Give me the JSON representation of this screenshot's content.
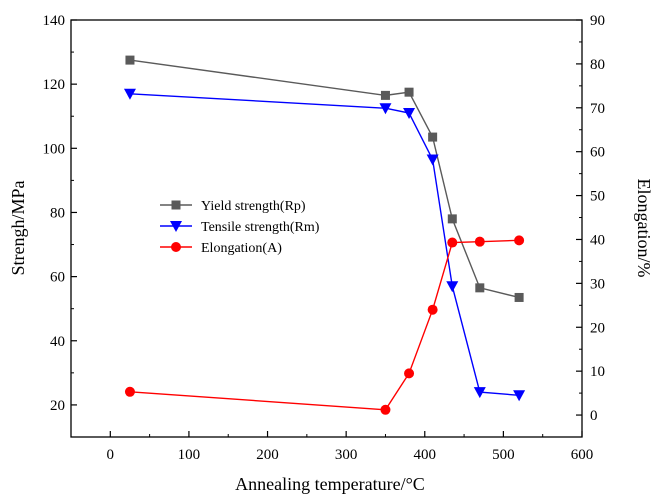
{
  "chart_data": {
    "type": "line",
    "title": "",
    "xlabel": "Annealing temperature/°C",
    "ylabel_left": "Strengh/MPa",
    "ylabel_right": "Elongation/%",
    "xlim": [
      -50,
      600
    ],
    "ylim_left": [
      10,
      140
    ],
    "ylim_right": [
      -5,
      90
    ],
    "x_ticks": [
      0,
      100,
      200,
      300,
      400,
      500,
      600
    ],
    "y_left_ticks": [
      20,
      40,
      60,
      80,
      100,
      120,
      140
    ],
    "y_right_ticks": [
      0,
      10,
      20,
      30,
      40,
      50,
      60,
      70,
      80,
      90
    ],
    "grid": false,
    "legend_position": "center-left",
    "series": [
      {
        "name": "Yield strength(Rp)",
        "axis": "left",
        "color": "#5a5a5a",
        "marker": "square",
        "x": [
          25,
          350,
          380,
          410,
          435,
          470,
          520
        ],
        "values": [
          127.5,
          116.5,
          117.5,
          103.5,
          78,
          56.5,
          53.5
        ]
      },
      {
        "name": "Tensile strength(Rm)",
        "axis": "left",
        "color": "#0000ff",
        "marker": "triangle-down",
        "x": [
          25,
          350,
          380,
          410,
          435,
          470,
          520
        ],
        "values": [
          117,
          112.5,
          111,
          96.5,
          57,
          24,
          23
        ]
      },
      {
        "name": "Elongation(A)",
        "axis": "right",
        "color": "#ff0000",
        "marker": "circle",
        "x": [
          25,
          350,
          380,
          410,
          435,
          470,
          520
        ],
        "values": [
          5.3,
          1.2,
          9.5,
          24,
          39.3,
          39.5,
          39.8
        ]
      }
    ]
  }
}
